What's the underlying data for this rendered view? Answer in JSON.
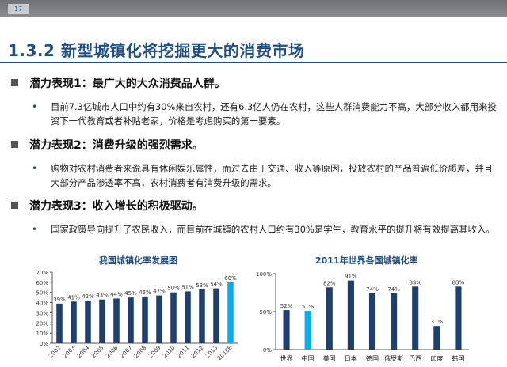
{
  "header": {
    "slide_number": "17"
  },
  "title": "1.3.2 新型城镇化将挖掘更大的消费市场",
  "sections": [
    {
      "heading": "潜力表现1：最广大的大众消费品人群。",
      "bullet": "目前7.3亿城市人口中约有30%来自农村，还有6.3亿人仍在农村，这些人群消费能力不高，大部分收入都用来投资下一代教育或者补贴老家，价格是考虑购买的第一要素。"
    },
    {
      "heading": "潜力表现2：消费升级的强烈需求。",
      "bullet": "购物对农村消费者来说具有休闲娱乐属性，而过去由于交通、收入等原因，投放农村的产品普遍低价质差，并且大部分产品渗透率不高，农村消费者有消费升级的需求。"
    },
    {
      "heading": "潜力表现3：收入增长的积极驱动。",
      "bullet": "国家政策导向提升了农民收入，而目前在城镇的农村人口约有30%是学生，教育水平的提升将有效提高其收入。"
    }
  ],
  "colors": {
    "title": "#1f4e83",
    "bar": "#1f3f6e",
    "highlight": "#00b0f0"
  },
  "chart_data": [
    {
      "type": "bar",
      "title": "我国城镇化率发展图",
      "categories": [
        "2002",
        "2003",
        "2004",
        "2005",
        "2006",
        "2007",
        "2008",
        "2009",
        "2010",
        "2011",
        "2012",
        "2013",
        "2018E"
      ],
      "values": [
        39,
        41,
        42,
        43,
        44,
        45,
        46,
        47,
        50,
        51,
        53,
        54,
        60
      ],
      "data_labels": [
        "39%",
        "41%",
        "42%",
        "43%",
        "44%",
        "45%",
        "46%",
        "47%",
        "50%",
        "51%",
        "53%",
        "54%",
        "60%"
      ],
      "highlight_index": 12,
      "ylim": [
        0,
        70
      ],
      "yticks": [
        "0%",
        "10%",
        "20%",
        "30%",
        "40%",
        "50%",
        "60%",
        "70%"
      ],
      "grid": false
    },
    {
      "type": "bar",
      "title": "2011年世界各国城镇化率",
      "categories": [
        "世界",
        "中国",
        "美国",
        "日本",
        "德国",
        "俄罗斯",
        "巴西",
        "印度",
        "韩国"
      ],
      "values": [
        52,
        51,
        82,
        91,
        74,
        74,
        83,
        31,
        83
      ],
      "data_labels": [
        "52%",
        "51%",
        "82%",
        "91%",
        "74%",
        "74%",
        "83%",
        "31%",
        "83%"
      ],
      "highlight_index": 1,
      "ylim": [
        0,
        100
      ],
      "yticks": [
        "0%",
        "50%",
        "100%"
      ],
      "grid": false
    }
  ]
}
